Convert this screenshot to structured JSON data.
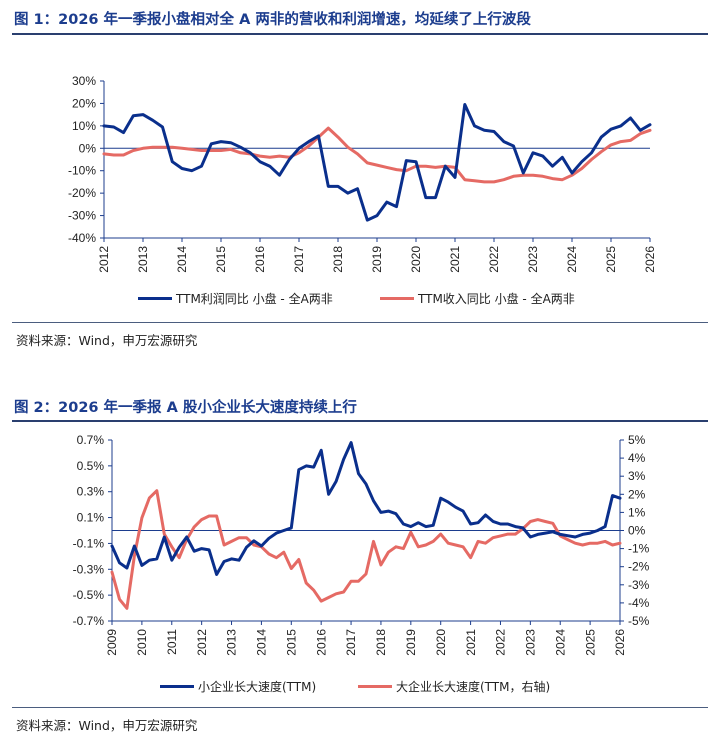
{
  "fig1": {
    "title": "图 1：2026 年一季报小盘相对全 A 两非的营收和利润增速，均延续了上行波段",
    "source": "资料来源：Wind，申万宏源研究",
    "legend": [
      "TTM利润同比 小盘 - 全A两非",
      "TTM收入同比 小盘 - 全A两非"
    ]
  },
  "fig2": {
    "title": "图 2：2026 年一季报 A 股小企业长大速度持续上行",
    "source": "资料来源：Wind，申万宏源研究",
    "legend": [
      "小企业长大速度(TTM)",
      "大企业长大速度(TTM，右轴)"
    ]
  },
  "colors": {
    "navy": "#0a2f8c",
    "salmon": "#e56a64",
    "axis": "#1c3d8e",
    "title": "#1c3d8e"
  },
  "chart_data": [
    {
      "type": "line",
      "x_ticks": [
        "2012",
        "2013",
        "2014",
        "2015",
        "2016",
        "2017",
        "2018",
        "2019",
        "2020",
        "2021",
        "2022",
        "2023",
        "2024",
        "2025",
        "2026"
      ],
      "y_ticks": [
        "30%",
        "20%",
        "10%",
        "0%",
        "-10%",
        "-20%",
        "-30%",
        "-40%"
      ],
      "ylim": [
        -40,
        30
      ],
      "xlim": [
        2012,
        2026
      ],
      "series": [
        {
          "name": "TTM利润同比 小盘 - 全A两非",
          "color": "#0a2f8c",
          "x": [
            2012,
            2012.25,
            2012.5,
            2012.75,
            2013,
            2013.25,
            2013.5,
            2013.75,
            2014,
            2014.25,
            2014.5,
            2014.75,
            2015,
            2015.25,
            2015.5,
            2015.75,
            2016,
            2016.25,
            2016.5,
            2016.75,
            2017,
            2017.25,
            2017.5,
            2017.75,
            2018,
            2018.25,
            2018.5,
            2018.75,
            2019,
            2019.25,
            2019.5,
            2019.75,
            2020,
            2020.25,
            2020.5,
            2020.75,
            2021,
            2021.25,
            2021.5,
            2021.75,
            2022,
            2022.25,
            2022.5,
            2022.75,
            2023,
            2023.25,
            2023.5,
            2023.75,
            2024,
            2024.25,
            2024.5,
            2024.75,
            2025,
            2025.25,
            2025.5,
            2025.75,
            2026
          ],
          "y": [
            10,
            9.5,
            7,
            14.5,
            15,
            12.5,
            9.5,
            -6,
            -9,
            -10,
            -8,
            2,
            3,
            2.5,
            0.5,
            -2,
            -6,
            -8,
            -12,
            -5,
            0,
            3,
            5.5,
            -17,
            -17,
            -20,
            -18,
            -32,
            -30,
            -24,
            -26,
            -5.5,
            -6,
            -22,
            -22,
            -8,
            -13,
            19.5,
            10,
            8,
            7.5,
            3,
            1,
            -11,
            -2,
            -3.5,
            -8,
            -4,
            -11,
            -6,
            -2,
            5,
            8.5,
            10,
            13.5,
            8,
            10.5
          ]
        },
        {
          "name": "TTM收入同比 小盘 - 全A两非",
          "color": "#e56a64",
          "x": [
            2012,
            2012.25,
            2012.5,
            2012.75,
            2013,
            2013.25,
            2013.5,
            2013.75,
            2014,
            2014.25,
            2014.5,
            2014.75,
            2015,
            2015.25,
            2015.5,
            2015.75,
            2016,
            2016.25,
            2016.5,
            2016.75,
            2017,
            2017.25,
            2017.5,
            2017.75,
            2018,
            2018.25,
            2018.5,
            2018.75,
            2019,
            2019.25,
            2019.5,
            2019.75,
            2020,
            2020.25,
            2020.5,
            2020.75,
            2021,
            2021.25,
            2021.5,
            2021.75,
            2022,
            2022.25,
            2022.5,
            2022.75,
            2023,
            2023.25,
            2023.5,
            2023.75,
            2024,
            2024.25,
            2024.5,
            2024.75,
            2025,
            2025.25,
            2025.5,
            2025.75,
            2026
          ],
          "y": [
            -2.5,
            -3,
            -3,
            -1,
            0,
            0.5,
            0.5,
            0.5,
            0,
            -0.5,
            -1,
            -1,
            -1,
            -0.5,
            -2,
            -2.5,
            -3.5,
            -4,
            -3.5,
            -4,
            -2,
            1,
            5,
            9,
            5,
            0.5,
            -2.5,
            -6.5,
            -7.5,
            -8.5,
            -9.5,
            -10,
            -8,
            -8,
            -8.5,
            -8,
            -8.5,
            -14,
            -14.5,
            -15,
            -15,
            -14,
            -12.5,
            -12,
            -12,
            -12.5,
            -13.5,
            -14,
            -12,
            -9,
            -5,
            -1.5,
            1.5,
            3,
            3.5,
            6.5,
            8
          ]
        }
      ]
    },
    {
      "type": "line",
      "x_ticks": [
        "2009",
        "2010",
        "2011",
        "2012",
        "2013",
        "2014",
        "2015",
        "2016",
        "2017",
        "2018",
        "2019",
        "2020",
        "2021",
        "2022",
        "2023",
        "2024",
        "2025",
        "2026"
      ],
      "y_ticks_left": [
        "0.7%",
        "0.5%",
        "0.3%",
        "0.1%",
        "-0.1%",
        "-0.3%",
        "-0.5%",
        "-0.7%"
      ],
      "y_ticks_right": [
        "5%",
        "4%",
        "3%",
        "2%",
        "1%",
        "0%",
        "-1%",
        "-2%",
        "-3%",
        "-4%",
        "-5%"
      ],
      "ylim_left": [
        -0.7,
        0.7
      ],
      "ylim_right": [
        -5,
        5
      ],
      "xlim": [
        2009,
        2026
      ],
      "series": [
        {
          "name": "小企业长大速度(TTM)",
          "axis": "left",
          "color": "#0a2f8c",
          "x": [
            2009,
            2009.25,
            2009.5,
            2009.75,
            2010,
            2010.25,
            2010.5,
            2010.75,
            2011,
            2011.25,
            2011.5,
            2011.75,
            2012,
            2012.25,
            2012.5,
            2012.75,
            2013,
            2013.25,
            2013.5,
            2013.75,
            2014,
            2014.25,
            2014.5,
            2014.75,
            2015,
            2015.25,
            2015.5,
            2015.75,
            2016,
            2016.25,
            2016.5,
            2016.75,
            2017,
            2017.25,
            2017.5,
            2017.75,
            2018,
            2018.25,
            2018.5,
            2018.75,
            2019,
            2019.25,
            2019.5,
            2019.75,
            2020,
            2020.25,
            2020.5,
            2020.75,
            2021,
            2021.25,
            2021.5,
            2021.75,
            2022,
            2022.25,
            2022.5,
            2022.75,
            2023,
            2023.25,
            2023.5,
            2023.75,
            2024,
            2024.25,
            2024.5,
            2024.75,
            2025,
            2025.25,
            2025.5,
            2025.75,
            2026
          ],
          "y": [
            -0.12,
            -0.25,
            -0.29,
            -0.12,
            -0.27,
            -0.23,
            -0.22,
            -0.05,
            -0.23,
            -0.13,
            -0.05,
            -0.16,
            -0.14,
            -0.15,
            -0.34,
            -0.24,
            -0.22,
            -0.23,
            -0.13,
            -0.08,
            -0.12,
            -0.06,
            -0.02,
            0,
            0.02,
            0.47,
            0.5,
            0.49,
            0.62,
            0.28,
            0.38,
            0.55,
            0.68,
            0.44,
            0.36,
            0.23,
            0.14,
            0.15,
            0.13,
            0.05,
            0.03,
            0.06,
            0.03,
            0.04,
            0.25,
            0.22,
            0.18,
            0.15,
            0.05,
            0.06,
            0.12,
            0.07,
            0.05,
            0.05,
            0.03,
            0.02,
            -0.05,
            -0.03,
            -0.02,
            -0.01,
            -0.03,
            -0.04,
            -0.05,
            -0.03,
            -0.02,
            0,
            0.03,
            0.27,
            0.25
          ]
        },
        {
          "name": "大企业长大速度(TTM，右轴)",
          "axis": "right",
          "color": "#e56a64",
          "x": [
            2009,
            2009.25,
            2009.5,
            2009.75,
            2010,
            2010.25,
            2010.5,
            2010.75,
            2011,
            2011.25,
            2011.5,
            2011.75,
            2012,
            2012.25,
            2012.5,
            2012.75,
            2013,
            2013.25,
            2013.5,
            2013.75,
            2014,
            2014.25,
            2014.5,
            2014.75,
            2015,
            2015.25,
            2015.5,
            2015.75,
            2016,
            2016.25,
            2016.5,
            2016.75,
            2017,
            2017.25,
            2017.5,
            2017.75,
            2018,
            2018.25,
            2018.5,
            2018.75,
            2019,
            2019.25,
            2019.5,
            2019.75,
            2020,
            2020.25,
            2020.5,
            2020.75,
            2021,
            2021.25,
            2021.5,
            2021.75,
            2022,
            2022.25,
            2022.5,
            2022.75,
            2023,
            2023.25,
            2023.5,
            2023.75,
            2024,
            2024.25,
            2024.5,
            2024.75,
            2025,
            2025.25,
            2025.5,
            2025.75,
            2026
          ],
          "y": [
            -2.3,
            -3.8,
            -4.3,
            -1.4,
            0.7,
            1.8,
            2.2,
            -0.2,
            -0.9,
            -1.5,
            -0.5,
            0.2,
            0.6,
            0.8,
            0.8,
            -0.8,
            -0.6,
            -0.4,
            -0.4,
            -0.8,
            -0.9,
            -1.3,
            -1.5,
            -1.2,
            -2.1,
            -1.6,
            -2.9,
            -3.3,
            -3.9,
            -3.7,
            -3.5,
            -3.4,
            -2.8,
            -2.8,
            -2.4,
            -0.6,
            -1.9,
            -1.2,
            -0.9,
            -1.0,
            -0.1,
            -0.9,
            -0.8,
            -0.6,
            -0.2,
            -0.7,
            -0.8,
            -0.9,
            -1.5,
            -0.6,
            -0.7,
            -0.4,
            -0.3,
            -0.2,
            -0.2,
            0.1,
            0.5,
            0.6,
            0.5,
            0.4,
            -0.3,
            -0.5,
            -0.7,
            -0.8,
            -0.7,
            -0.7,
            -0.6,
            -0.8,
            -0.7
          ]
        }
      ]
    }
  ]
}
